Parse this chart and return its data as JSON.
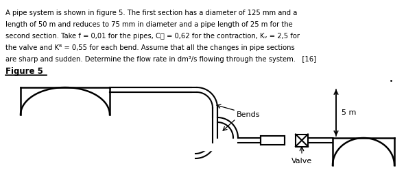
{
  "background_color": "#ffffff",
  "text_color": "#000000",
  "line_color": "#000000",
  "figure_label": "Figure 5",
  "label_bends": "Bends",
  "label_valve": "Valve",
  "label_5m": "5 m",
  "text_lines": [
    "A pipe system is shown in figure 5. The first section has a diameter of 125 mm and a",
    "length of 50 m and reduces to 75 mm in diameter and a pipe length of 25 m for the",
    "second section. Take f = 0,01 for the pipes, Cⲟ = 0,62 for the contraction, Kᵥ = 2,5 for",
    "the valve and Kᴮ = 0,55 for each bend. Assume that all the changes in pipe sections",
    "are sharp and sudden. Determine the flow rate in dm³/s flowing through the system.   [16]"
  ],
  "fig_width": 6.08,
  "fig_height": 2.68,
  "dpi": 100
}
